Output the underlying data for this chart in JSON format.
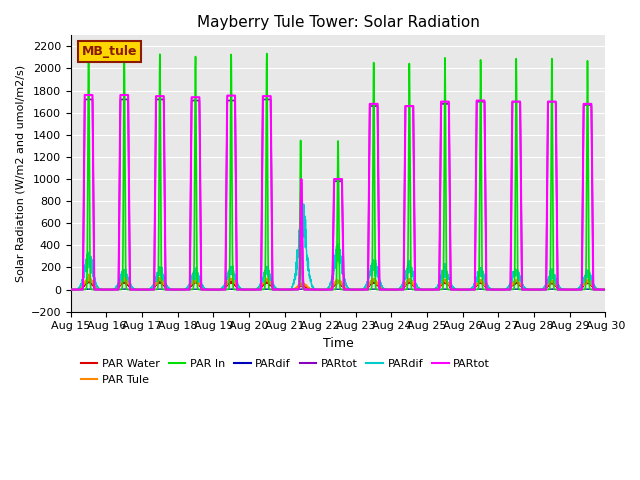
{
  "title": "Mayberry Tule Tower: Solar Radiation",
  "ylabel": "Solar Radiation (W/m2 and umol/m2/s)",
  "xlabel": "Time",
  "ylim": [
    -200,
    2300
  ],
  "yticks": [
    -200,
    0,
    200,
    400,
    600,
    800,
    1000,
    1200,
    1400,
    1600,
    1800,
    2000,
    2200
  ],
  "xtick_labels": [
    "Aug 15",
    "Aug 16",
    "Aug 17",
    "Aug 18",
    "Aug 19",
    "Aug 20",
    "Aug 21",
    "Aug 22",
    "Aug 23",
    "Aug 24",
    "Aug 25",
    "Aug 26",
    "Aug 27",
    "Aug 28",
    "Aug 29",
    "Aug 30"
  ],
  "watermark_text": "MB_tule",
  "watermark_color": "#8B1A00",
  "watermark_bg": "#FFD700",
  "bg_color": "#e8e8e8",
  "n_days": 15,
  "seed": 42,
  "colors": {
    "par_water": "#dd0000",
    "par_tule": "#ff8800",
    "par_in": "#00dd00",
    "par_dif_blue": "#0000bb",
    "par_tot_purple": "#8800bb",
    "par_dif_cyan": "#00cccc",
    "par_tot_magenta": "#ff00ff"
  }
}
